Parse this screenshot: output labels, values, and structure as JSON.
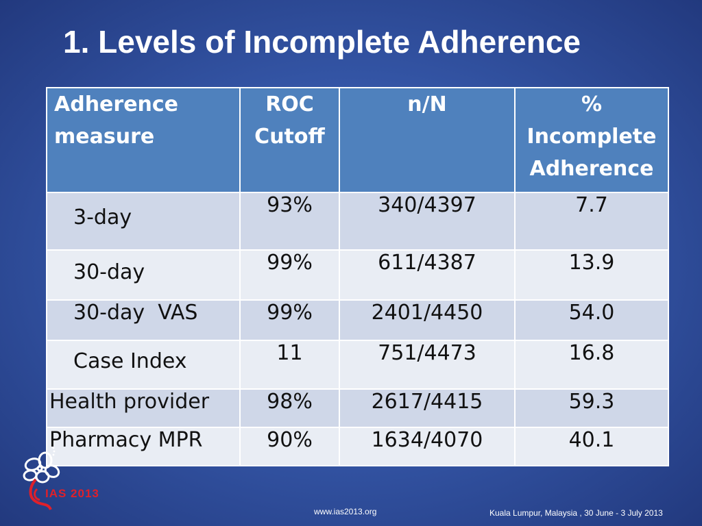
{
  "slide": {
    "title": "1. Levels of Incomplete Adherence"
  },
  "table": {
    "headers": {
      "measure_line1": "Adherence",
      "measure_line2": "measure",
      "roc_line1": "ROC",
      "roc_line2": "Cutoff",
      "nN": "n/N",
      "pct_line1": "%",
      "pct_line2": "Incomplete",
      "pct_line3": "Adherence"
    },
    "rows": [
      {
        "measure": "3-day",
        "roc": "93%",
        "nN": "340/4397",
        "pct": "7.7"
      },
      {
        "measure": "30-day",
        "roc": "99%",
        "nN": "611/4387",
        "pct": "13.9"
      },
      {
        "measure": "30-day  VAS",
        "roc": "99%",
        "nN": "2401/4450",
        "pct": "54.0"
      },
      {
        "measure": "Case Index",
        "roc": "11",
        "nN": "751/4473",
        "pct": "16.8"
      },
      {
        "measure": "Health provider",
        "roc": "98%",
        "nN": "2617/4415",
        "pct": "59.3"
      },
      {
        "measure": "Pharmacy MPR",
        "roc": "90%",
        "nN": "1634/4070",
        "pct": "40.1"
      }
    ]
  },
  "logo": {
    "icon": "ias-flower-logo-icon",
    "text": "IAS 2013",
    "color": "#e0202a"
  },
  "footer": {
    "url": "www.ias2013.org",
    "location": "Kuala Lumpur, Malaysia , 30 June - 3 July 2013"
  },
  "colors": {
    "header_fill": "#4f81bd",
    "row_dark": "#cfd7e8",
    "row_light": "#e9edf4",
    "background": "#3557a8"
  }
}
